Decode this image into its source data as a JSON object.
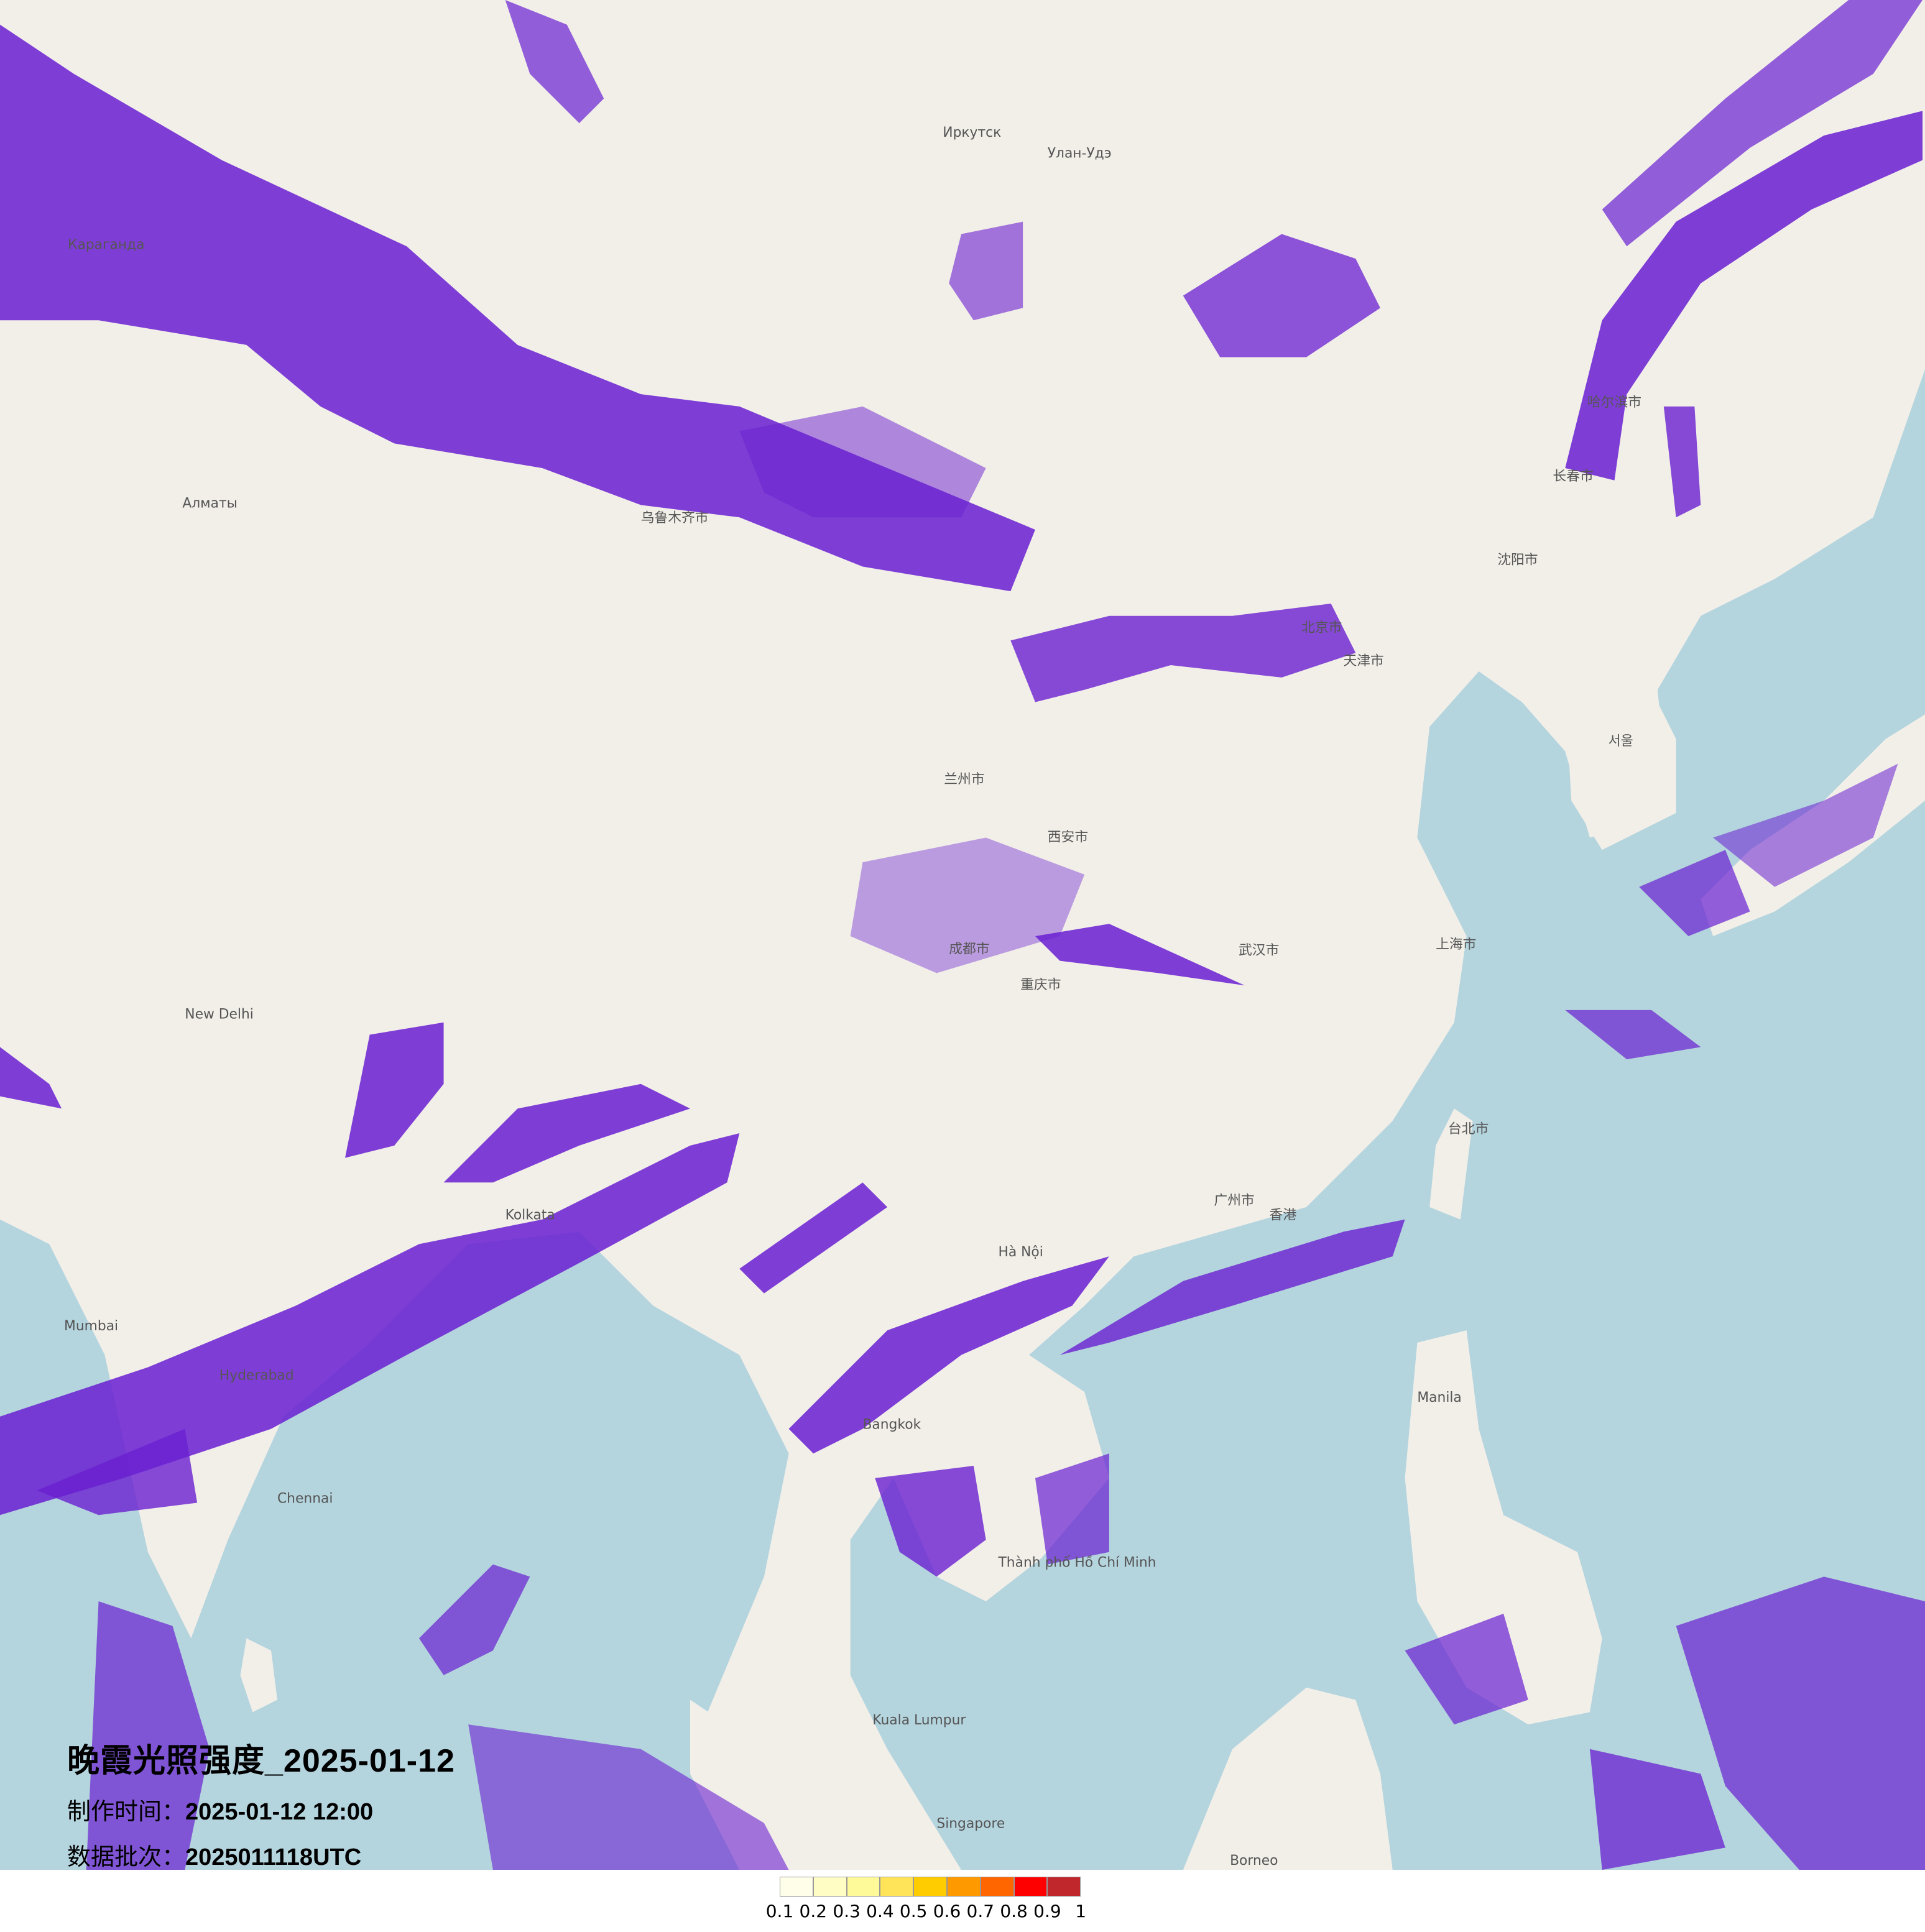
{
  "title": "晚霞光照强度_2025-01-12",
  "production_time_label": "制作时间：",
  "production_time": "2025-01-12 12:00",
  "data_batch_label": "数据批次：",
  "data_batch": "2025011118UTC",
  "legend": {
    "labels": [
      "0.1",
      "0.2",
      "0.3",
      "0.4",
      "0.5",
      "0.6",
      "0.7",
      "0.8",
      "0.9",
      "1"
    ],
    "colors": [
      "#fffee8",
      "#fffcc4",
      "#fffa99",
      "#ffe45a",
      "#ffcc00",
      "#ff9900",
      "#ff6600",
      "#ff0000",
      "#c0272d"
    ]
  },
  "map": {
    "land_color": "#f2efe9",
    "sea_color": "#b4d4de",
    "overlay_color": "#6a1fd1",
    "place_labels": [
      "Иркутск",
      "Улан-Удэ",
      "Караганда",
      "Алматы",
      "乌鲁木齐市",
      "兰州市",
      "西安市",
      "成都市",
      "重庆市",
      "北京市",
      "天津市",
      "沈阳市",
      "哈尔滨市",
      "长春市",
      "上海市",
      "武汉市",
      "广州市",
      "香港",
      "台北市",
      "Hà Nội",
      "Bangkok",
      "Kolkata",
      "New Delhi",
      "Mumbai",
      "Hyderabad",
      "Chennai",
      "Manila",
      "Singapore",
      "Kuala Lumpur",
      "Borneo",
      "서울",
      "Thành phố Hồ Chí Minh"
    ]
  }
}
